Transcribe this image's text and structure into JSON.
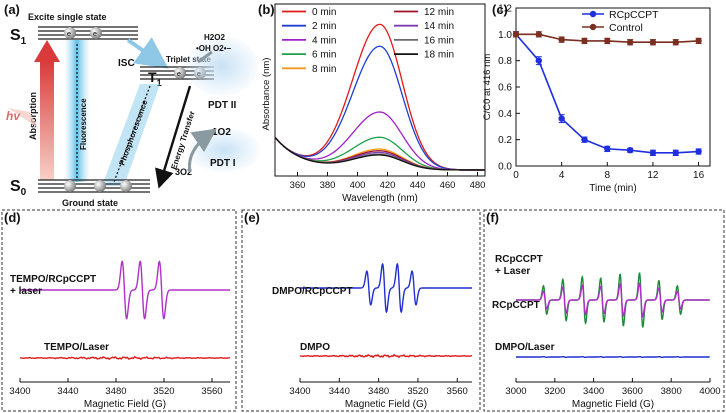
{
  "panels": {
    "a": {
      "label": "(a)",
      "s1": "S",
      "s1_sub": "1",
      "s1_title": "Excite single state",
      "t1": "T",
      "t1_sub": "1",
      "t1_title": "Triplet state",
      "s0": "S",
      "s0_sub": "0",
      "ground": "Ground state",
      "isc": "ISC",
      "hv": "hv",
      "absorption": "Absorption",
      "fluorescence": "Fluorescence",
      "phosphorescence": "Phosphorescence",
      "energy_transfer": "Energy Transfer",
      "electron": "e",
      "pdt2_species_line1": "H2O2",
      "pdt2_species_line2": "•OH  O2•−",
      "pdt2": "PDT II",
      "singlet_o2": "1O2",
      "triplet_o2": "3O2",
      "pdt1": "PDT I"
    },
    "b": {
      "label": "(b)"
    },
    "c": {
      "label": "(c)"
    },
    "d": {
      "label": "(d)"
    },
    "e": {
      "label": "(e)"
    },
    "f": {
      "label": "(f)"
    }
  },
  "chart_data": [
    {
      "id": "b",
      "type": "line",
      "xlabel": "Wavelength (nm)",
      "ylabel": "Absorbance (nm)",
      "xlim": [
        345,
        485
      ],
      "ylim": [
        0,
        1.0
      ],
      "xticks": [
        360,
        380,
        400,
        420,
        440,
        460,
        480
      ],
      "peak_x": 415,
      "series": [
        {
          "name": "0 min",
          "color": "#e01a1a",
          "peak": 0.86
        },
        {
          "name": "2 min",
          "color": "#1f3fd0",
          "peak": 0.73
        },
        {
          "name": "4 min",
          "color": "#a020c8",
          "peak": 0.34
        },
        {
          "name": "6 min",
          "color": "#1ca04a",
          "peak": 0.19
        },
        {
          "name": "8 min",
          "color": "#f29a1a",
          "peak": 0.12
        },
        {
          "name": "12 min",
          "color": "#a01028",
          "peak": 0.11
        },
        {
          "name": "14 min",
          "color": "#7a3fb0",
          "peak": 0.1
        },
        {
          "name": "16 min",
          "color": "#6a6a6a",
          "peak": 0.09
        },
        {
          "name": "18 min",
          "color": "#111111",
          "peak": 0.085
        }
      ]
    },
    {
      "id": "c",
      "type": "line",
      "xlabel": "Time (min)",
      "ylabel": "C/C0 at 416 nm",
      "xlim": [
        0,
        17
      ],
      "ylim": [
        0,
        1.2
      ],
      "xticks": [
        0,
        4,
        8,
        12,
        16
      ],
      "yticks": [
        0.0,
        0.2,
        0.4,
        0.6,
        0.8,
        1.0,
        1.2
      ],
      "series": [
        {
          "name": "RCpCCPT",
          "color": "#1f2fe0",
          "x": [
            0,
            2,
            4,
            6,
            8,
            10,
            12,
            14,
            16
          ],
          "y": [
            1.0,
            0.8,
            0.36,
            0.2,
            0.13,
            0.12,
            0.1,
            0.1,
            0.11
          ],
          "err": [
            0.02,
            0.03,
            0.03,
            0.02,
            0.02,
            0.015,
            0.02,
            0.02,
            0.02
          ]
        },
        {
          "name": "Control",
          "color": "#7a2f20",
          "x": [
            0,
            2,
            4,
            6,
            8,
            10,
            12,
            14,
            16
          ],
          "y": [
            1.0,
            1.0,
            0.96,
            0.95,
            0.95,
            0.94,
            0.94,
            0.94,
            0.95
          ],
          "err": [
            0.02,
            0.02,
            0.02,
            0.02,
            0.02,
            0.02,
            0.02,
            0.02,
            0.02
          ]
        }
      ]
    },
    {
      "id": "d",
      "type": "line",
      "xlabel": "Magnetic Field (G)",
      "xlim": [
        3400,
        3575
      ],
      "xticks": [
        3400,
        3440,
        3480,
        3520,
        3560
      ],
      "series": [
        {
          "name": "TEMPO/RCpCCPT\n+ laser",
          "label_lines": [
            "TEMPO/RCpCCPT",
            "+ laser"
          ],
          "color": "#b030c8",
          "kind": "tempo",
          "amp": 1.0
        },
        {
          "name": "TEMPO/Laser",
          "label_lines": [
            "TEMPO/Laser"
          ],
          "color": "#e01a1a",
          "kind": "noise",
          "amp": 0.12
        }
      ]
    },
    {
      "id": "e",
      "type": "line",
      "xlabel": "Magnetic Field (G)",
      "xlim": [
        3400,
        3575
      ],
      "xticks": [
        3400,
        3440,
        3480,
        3520,
        3560
      ],
      "series": [
        {
          "name": "DMPO/RCpCCPT",
          "label_lines": [
            "DMPO/RCpCCPT"
          ],
          "color": "#1f2fd0",
          "kind": "dmpo",
          "amp": 1.0
        },
        {
          "name": "DMPO",
          "label_lines": [
            "DMPO"
          ],
          "color": "#e01a1a",
          "kind": "noise",
          "amp": 0.12
        }
      ]
    },
    {
      "id": "f",
      "type": "line",
      "xlabel": "Magnetic Field (G)",
      "xlim": [
        3000,
        4000
      ],
      "xticks": [
        3000,
        3200,
        3400,
        3600,
        3800,
        4000
      ],
      "series": [
        {
          "name": "RCpCCPT + Laser",
          "label_lines": [
            "RCpCCPT",
            "+ Laser"
          ],
          "color": "#1e8a3c",
          "kind": "multi",
          "amp": 1.0
        },
        {
          "name": "RCpCCPT",
          "label_lines": [
            "RCpCCPT"
          ],
          "color": "#b030c8",
          "kind": "multi",
          "amp": 0.62
        },
        {
          "name": "DMPO/Laser",
          "label_lines": [
            "DMPO/Laser"
          ],
          "color": "#1f2fd0",
          "kind": "small",
          "amp": 0.1
        }
      ]
    }
  ]
}
